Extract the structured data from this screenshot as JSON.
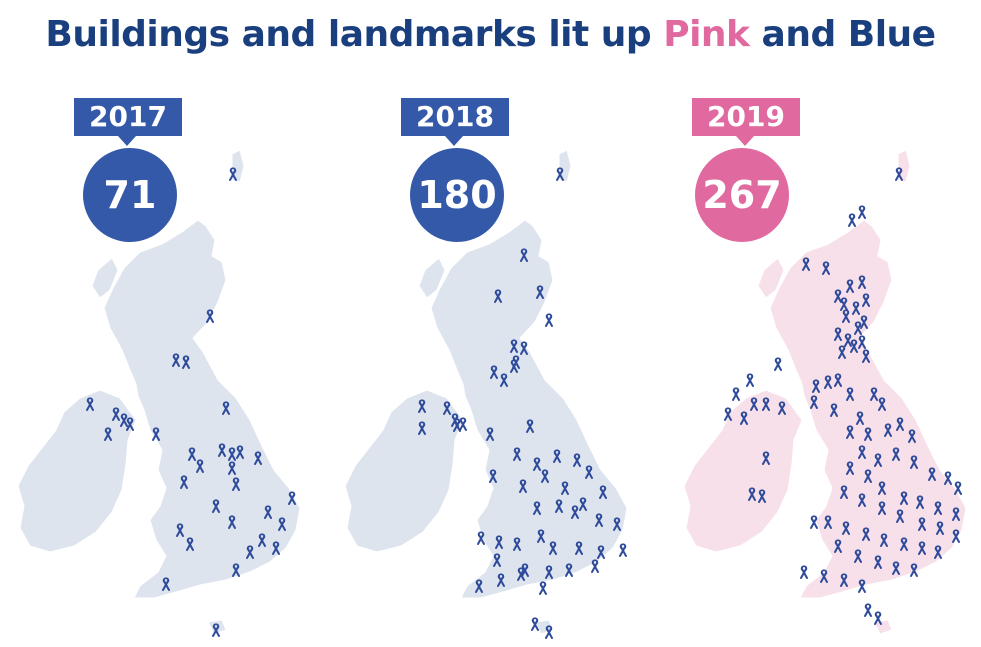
{
  "title": {
    "part1": "Buildings and landmarks lit up ",
    "pink_word": "Pink",
    "part2": " and Blue"
  },
  "colors": {
    "navy": "#1a3f7e",
    "blue": "#3459a8",
    "pink": "#e06aa0",
    "map_grey": "#dde4ee",
    "map_pink": "#f7e0ea",
    "ribbon": "#2e4a9a"
  },
  "panels": [
    {
      "year": "2017",
      "count": "71",
      "theme": "blue"
    },
    {
      "year": "2018",
      "count": "180",
      "theme": "blue"
    },
    {
      "year": "2019",
      "count": "267",
      "theme": "pink"
    }
  ],
  "icons": {
    "marker": "awareness-ribbon-icon"
  }
}
